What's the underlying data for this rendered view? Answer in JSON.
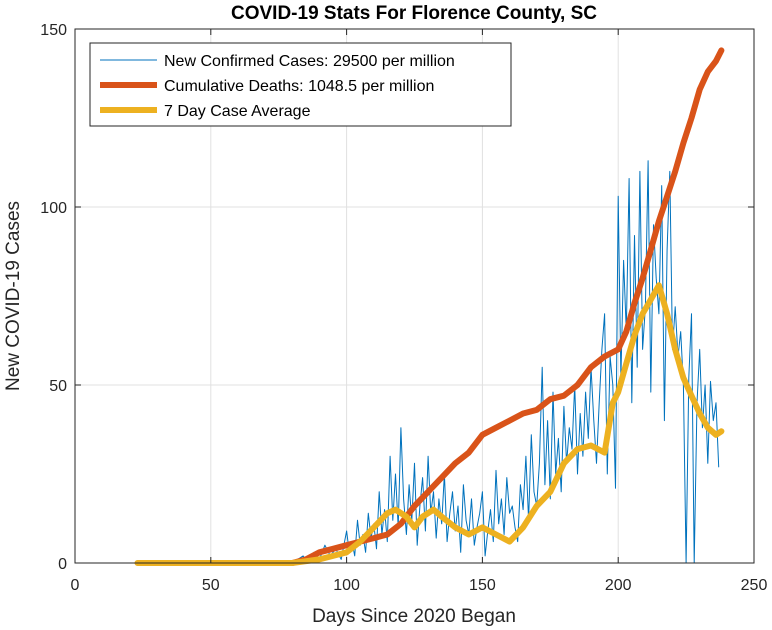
{
  "chart_data": {
    "type": "line",
    "title": "COVID-19 Stats For Florence County, SC",
    "xlabel": "Days Since 2020 Began",
    "ylabel": "New COVID-19 Cases",
    "xlim": [
      0,
      250
    ],
    "ylim": [
      0,
      150
    ],
    "xticks": [
      0,
      50,
      100,
      150,
      200,
      250
    ],
    "yticks": [
      0,
      50,
      100,
      150
    ],
    "grid": true,
    "legend_position": "top-left",
    "series": [
      {
        "name": "New Confirmed Cases: 29500 per million",
        "color": "#0072BD",
        "x": [
          23,
          30,
          40,
          50,
          60,
          70,
          78,
          80,
          82,
          84,
          86,
          88,
          90,
          92,
          94,
          96,
          98,
          100,
          101,
          102,
          103,
          104,
          105,
          106,
          107,
          108,
          109,
          110,
          111,
          112,
          113,
          114,
          115,
          116,
          117,
          118,
          119,
          120,
          121,
          122,
          123,
          124,
          125,
          126,
          127,
          128,
          129,
          130,
          131,
          132,
          133,
          134,
          135,
          136,
          137,
          138,
          139,
          140,
          141,
          142,
          143,
          144,
          145,
          146,
          147,
          148,
          149,
          150,
          151,
          152,
          153,
          154,
          155,
          156,
          157,
          158,
          159,
          160,
          161,
          162,
          163,
          164,
          165,
          166,
          167,
          168,
          169,
          170,
          171,
          172,
          173,
          174,
          175,
          176,
          177,
          178,
          179,
          180,
          181,
          182,
          183,
          184,
          185,
          186,
          187,
          188,
          189,
          190,
          191,
          192,
          193,
          194,
          195,
          196,
          197,
          198,
          199,
          200,
          201,
          202,
          203,
          204,
          205,
          206,
          207,
          208,
          209,
          210,
          211,
          212,
          213,
          214,
          215,
          216,
          217,
          218,
          219,
          220,
          221,
          222,
          223,
          224,
          225,
          226,
          227,
          228,
          229,
          230,
          231,
          232,
          233,
          234,
          235,
          236,
          237
        ],
        "values": [
          0,
          0,
          0,
          0,
          0,
          0,
          0,
          0,
          1,
          2,
          0,
          3,
          1,
          5,
          2,
          4,
          1,
          9,
          3,
          6,
          2,
          12,
          5,
          8,
          3,
          14,
          7,
          11,
          4,
          20,
          8,
          15,
          6,
          30,
          12,
          25,
          10,
          38,
          18,
          8,
          22,
          12,
          28,
          5,
          16,
          24,
          9,
          30,
          14,
          20,
          7,
          18,
          11,
          25,
          6,
          14,
          20,
          9,
          16,
          3,
          22,
          12,
          8,
          18,
          5,
          10,
          14,
          20,
          2,
          9,
          15,
          6,
          26,
          11,
          18,
          8,
          24,
          14,
          16,
          10,
          6,
          22,
          15,
          30,
          12,
          36,
          20,
          16,
          28,
          55,
          22,
          40,
          18,
          48,
          25,
          35,
          20,
          44,
          28,
          38,
          32,
          50,
          25,
          42,
          30,
          48,
          35,
          55,
          40,
          28,
          45,
          60,
          70,
          25,
          58,
          50,
          21,
          103,
          52,
          85,
          65,
          108,
          45,
          92,
          55,
          110,
          60,
          72,
          113,
          48,
          95,
          80,
          70,
          106,
          40,
          88,
          110,
          60,
          72,
          58,
          65,
          50,
          0,
          52,
          70,
          0,
          45,
          60,
          38,
          50,
          28,
          51,
          40,
          45,
          27
        ],
        "width": 1
      },
      {
        "name": "Cumulative Deaths: 1048.5 per million",
        "color": "#D95319",
        "x": [
          80,
          85,
          90,
          95,
          100,
          105,
          110,
          115,
          120,
          125,
          130,
          135,
          140,
          145,
          150,
          155,
          160,
          165,
          170,
          175,
          180,
          185,
          190,
          195,
          200,
          203,
          206,
          209,
          212,
          215,
          218,
          221,
          224,
          227,
          230,
          233,
          236,
          238
        ],
        "values": [
          0,
          1,
          3,
          4,
          5,
          6,
          7,
          8,
          11,
          16,
          20,
          24,
          28,
          31,
          36,
          38,
          40,
          42,
          43,
          46,
          47,
          50,
          55,
          58,
          60,
          65,
          73,
          80,
          88,
          96,
          103,
          110,
          118,
          125,
          133,
          138,
          141,
          144
        ],
        "width": 6
      },
      {
        "name": "7 Day Case Average",
        "color": "#EDB120",
        "x": [
          23,
          30,
          40,
          50,
          60,
          70,
          80,
          85,
          90,
          95,
          100,
          105,
          110,
          115,
          118,
          122,
          125,
          128,
          132,
          135,
          140,
          145,
          150,
          155,
          160,
          165,
          170,
          175,
          180,
          185,
          190,
          195,
          198,
          200,
          203,
          206,
          209,
          212,
          215,
          218,
          221,
          224,
          227,
          230,
          233,
          236,
          238
        ],
        "values": [
          0,
          0,
          0,
          0,
          0,
          0,
          0,
          0.5,
          1,
          2,
          3,
          6,
          10,
          14,
          15,
          13,
          10,
          13,
          15,
          13,
          10,
          8,
          10,
          8,
          6,
          10,
          16,
          20,
          28,
          32,
          33,
          31,
          45,
          48,
          56,
          64,
          70,
          74,
          78,
          70,
          60,
          52,
          47,
          42,
          38,
          36,
          37
        ],
        "width": 6
      }
    ]
  }
}
